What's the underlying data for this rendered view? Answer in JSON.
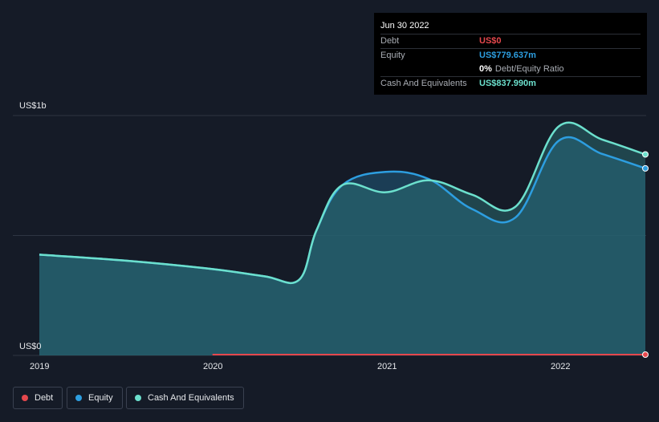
{
  "chart_data": {
    "type": "area",
    "title": "",
    "xlabel": "",
    "ylabel": "",
    "y_unit_labels": [
      "US$1b",
      "US$0"
    ],
    "ylim": [
      0,
      1000
    ],
    "x_ticks": [
      {
        "label": "2019",
        "x": 2019.0
      },
      {
        "label": "2020",
        "x": 2020.0
      },
      {
        "label": "2021",
        "x": 2021.0
      },
      {
        "label": "2022",
        "x": 2022.0
      }
    ],
    "series": [
      {
        "name": "Debt",
        "color": "#e5484d",
        "x": [
          2020.0,
          2022.5
        ],
        "values": [
          0,
          0
        ]
      },
      {
        "name": "Equity",
        "color": "#2d9ee0",
        "x": [
          2019.0,
          2019.5,
          2020.0,
          2020.3,
          2020.5,
          2020.6,
          2020.75,
          2021.0,
          2021.25,
          2021.5,
          2021.75,
          2022.0,
          2022.25,
          2022.5
        ],
        "values": [
          420,
          395,
          360,
          330,
          315,
          520,
          710,
          765,
          735,
          610,
          575,
          895,
          840,
          779.637
        ]
      },
      {
        "name": "Cash And Equivalents",
        "color": "#6ce0cd",
        "x": [
          2019.0,
          2019.5,
          2020.0,
          2020.3,
          2020.5,
          2020.6,
          2020.75,
          2021.0,
          2021.25,
          2021.5,
          2021.75,
          2022.0,
          2022.25,
          2022.5
        ],
        "values": [
          420,
          395,
          360,
          330,
          315,
          520,
          710,
          680,
          730,
          670,
          620,
          955,
          900,
          837.99
        ]
      }
    ],
    "legend": [
      "Debt",
      "Equity",
      "Cash And Equivalents"
    ]
  },
  "tooltip": {
    "date": "Jun 30 2022",
    "rows": [
      {
        "label": "Debt",
        "value": "US$0",
        "color": "#e5484d"
      },
      {
        "label": "Equity",
        "value": "US$779.637m",
        "color": "#2d9ee0"
      }
    ],
    "ratio_value": "0%",
    "ratio_label": "Debt/Equity Ratio",
    "cash_label": "Cash And Equivalents",
    "cash_value": "US$837.990m",
    "cash_color": "#6ce0cd"
  },
  "legend_labels": {
    "debt": "Debt",
    "equity": "Equity",
    "cash": "Cash And Equivalents"
  }
}
